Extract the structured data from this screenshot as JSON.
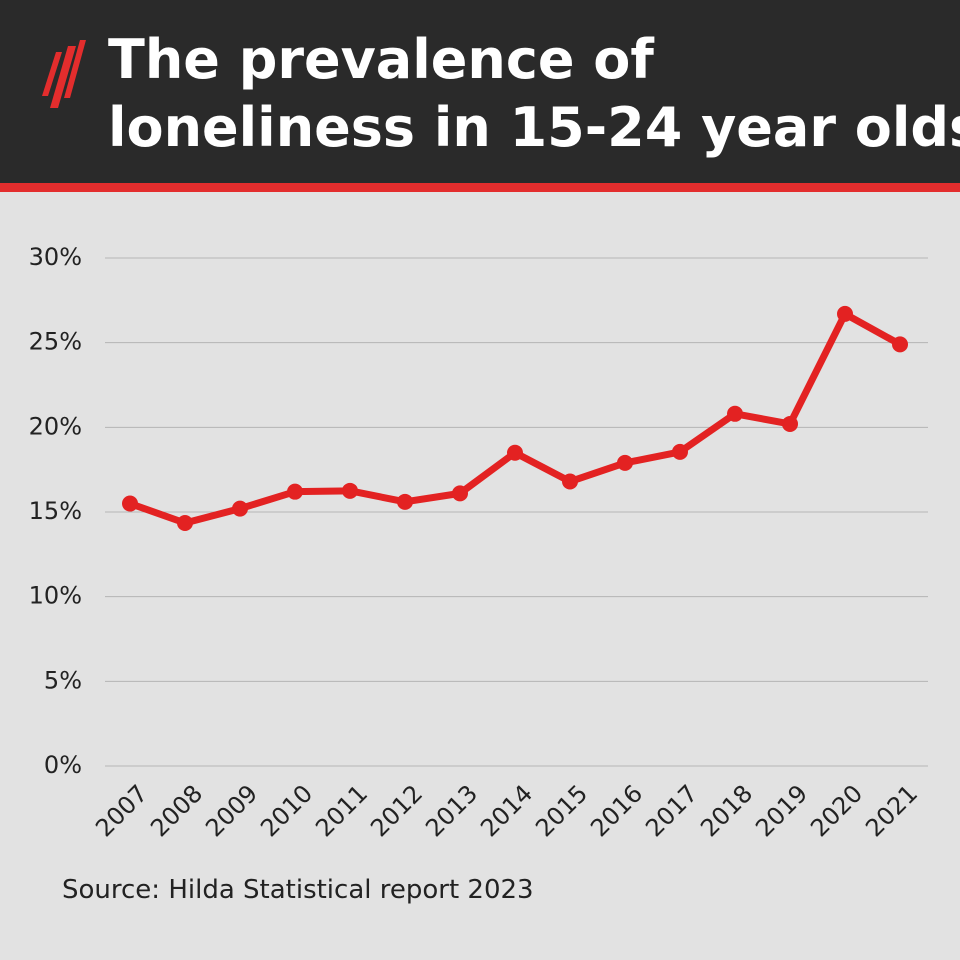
{
  "chart_data": {
    "type": "line",
    "title": [
      "The prevalence of",
      "loneliness in 15-24 year olds"
    ],
    "source": "Source: Hilda Statistical report 2023",
    "categories": [
      "2007",
      "2008",
      "2009",
      "2010",
      "2011",
      "2012",
      "2013",
      "2014",
      "2015",
      "2016",
      "2017",
      "2018",
      "2019",
      "2020",
      "2021"
    ],
    "values": [
      15.5,
      14.35,
      15.2,
      16.2,
      16.25,
      15.6,
      16.1,
      18.5,
      16.8,
      17.9,
      18.55,
      20.8,
      20.2,
      26.7,
      24.9
    ],
    "color": "#e32222",
    "ylim": [
      0,
      30
    ],
    "yticks": [
      {
        "value": 0,
        "label": "0%"
      },
      {
        "value": 5,
        "label": "5%"
      },
      {
        "value": 10,
        "label": "10%"
      },
      {
        "value": 15,
        "label": "15%"
      },
      {
        "value": 20,
        "label": "20%"
      },
      {
        "value": 25,
        "label": "25%"
      },
      {
        "value": 30,
        "label": "30%"
      }
    ],
    "grid": true
  }
}
